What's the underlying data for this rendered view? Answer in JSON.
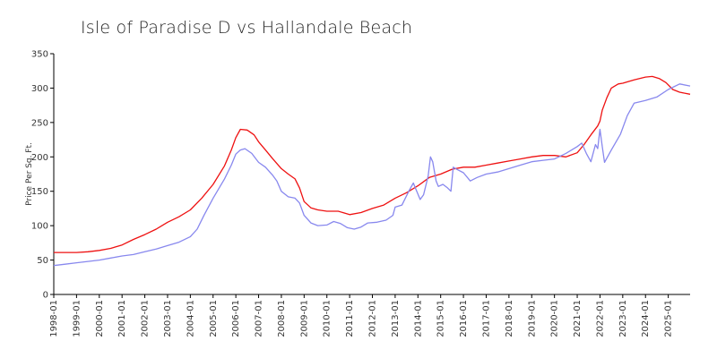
{
  "chart_data": {
    "type": "line",
    "title": "Isle of Paradise D vs Hallandale Beach",
    "xlabel": "",
    "ylabel": "Price Per Sq. Ft.",
    "ylim": [
      0,
      350
    ],
    "yticks": [
      0,
      50,
      100,
      150,
      200,
      250,
      300,
      350
    ],
    "xlim": [
      1998.0,
      2025.96
    ],
    "xticks": [
      "1998-01",
      "1999-01",
      "2000-01",
      "2001-01",
      "2002-01",
      "2003-01",
      "2004-01",
      "2005-01",
      "2006-01",
      "2007-01",
      "2008-01",
      "2009-01",
      "2010-01",
      "2011-01",
      "2012-01",
      "2013-01",
      "2014-01",
      "2015-01",
      "2016-01",
      "2017-01",
      "2018-01",
      "2019-01",
      "2020-01",
      "2021-01",
      "2022-01",
      "2023-01",
      "2024-01",
      "2025-01"
    ],
    "grid": false,
    "legend": "none",
    "series": [
      {
        "color": "#ee1111",
        "points": [
          [
            1998.0,
            61
          ],
          [
            1999.0,
            61
          ],
          [
            1999.5,
            62
          ],
          [
            2000.0,
            64
          ],
          [
            2000.5,
            67
          ],
          [
            2001.0,
            72
          ],
          [
            2001.5,
            80
          ],
          [
            2002.0,
            87
          ],
          [
            2002.5,
            95
          ],
          [
            2003.0,
            105
          ],
          [
            2003.5,
            113
          ],
          [
            2004.0,
            123
          ],
          [
            2004.5,
            140
          ],
          [
            2005.0,
            160
          ],
          [
            2005.5,
            187
          ],
          [
            2005.8,
            210
          ],
          [
            2006.0,
            228
          ],
          [
            2006.2,
            240
          ],
          [
            2006.5,
            239
          ],
          [
            2006.8,
            232
          ],
          [
            2007.0,
            222
          ],
          [
            2007.3,
            210
          ],
          [
            2007.6,
            198
          ],
          [
            2008.0,
            183
          ],
          [
            2008.3,
            175
          ],
          [
            2008.6,
            168
          ],
          [
            2008.8,
            155
          ],
          [
            2009.0,
            135
          ],
          [
            2009.3,
            126
          ],
          [
            2009.6,
            123
          ],
          [
            2010.0,
            121
          ],
          [
            2010.5,
            121
          ],
          [
            2011.0,
            116
          ],
          [
            2011.5,
            119
          ],
          [
            2012.0,
            125
          ],
          [
            2012.5,
            130
          ],
          [
            2013.0,
            140
          ],
          [
            2013.5,
            148
          ],
          [
            2014.0,
            158
          ],
          [
            2014.5,
            170
          ],
          [
            2015.0,
            175
          ],
          [
            2015.5,
            182
          ],
          [
            2016.0,
            185
          ],
          [
            2016.5,
            185
          ],
          [
            2017.0,
            188
          ],
          [
            2017.5,
            191
          ],
          [
            2018.0,
            194
          ],
          [
            2018.5,
            197
          ],
          [
            2019.0,
            200
          ],
          [
            2019.5,
            202
          ],
          [
            2020.0,
            202
          ],
          [
            2020.5,
            200
          ],
          [
            2021.0,
            206
          ],
          [
            2021.3,
            218
          ],
          [
            2021.6,
            232
          ],
          [
            2021.9,
            245
          ],
          [
            2022.0,
            252
          ],
          [
            2022.1,
            268
          ],
          [
            2022.3,
            286
          ],
          [
            2022.5,
            300
          ],
          [
            2022.8,
            306
          ],
          [
            2023.0,
            307
          ],
          [
            2023.5,
            312
          ],
          [
            2024.0,
            316
          ],
          [
            2024.3,
            317
          ],
          [
            2024.6,
            314
          ],
          [
            2024.9,
            308
          ],
          [
            2025.2,
            298
          ],
          [
            2025.5,
            294
          ],
          [
            2025.96,
            291
          ]
        ]
      },
      {
        "color": "#8888ee",
        "points": [
          [
            1998.0,
            42
          ],
          [
            1998.5,
            44
          ],
          [
            1999.0,
            46
          ],
          [
            1999.5,
            48
          ],
          [
            2000.0,
            50
          ],
          [
            2000.5,
            53
          ],
          [
            2001.0,
            56
          ],
          [
            2001.5,
            58
          ],
          [
            2002.0,
            62
          ],
          [
            2002.5,
            66
          ],
          [
            2003.0,
            71
          ],
          [
            2003.5,
            76
          ],
          [
            2004.0,
            84
          ],
          [
            2004.3,
            95
          ],
          [
            2004.6,
            115
          ],
          [
            2005.0,
            140
          ],
          [
            2005.5,
            168
          ],
          [
            2005.8,
            188
          ],
          [
            2006.0,
            204
          ],
          [
            2006.2,
            210
          ],
          [
            2006.4,
            212
          ],
          [
            2006.7,
            205
          ],
          [
            2007.0,
            192
          ],
          [
            2007.3,
            185
          ],
          [
            2007.6,
            174
          ],
          [
            2007.8,
            165
          ],
          [
            2008.0,
            150
          ],
          [
            2008.3,
            142
          ],
          [
            2008.6,
            140
          ],
          [
            2008.8,
            133
          ],
          [
            2009.0,
            115
          ],
          [
            2009.3,
            104
          ],
          [
            2009.6,
            100
          ],
          [
            2010.0,
            101
          ],
          [
            2010.3,
            106
          ],
          [
            2010.6,
            103
          ],
          [
            2010.9,
            97
          ],
          [
            2011.2,
            95
          ],
          [
            2011.5,
            98
          ],
          [
            2011.8,
            104
          ],
          [
            2012.2,
            105
          ],
          [
            2012.6,
            108
          ],
          [
            2012.9,
            115
          ],
          [
            2013.0,
            127
          ],
          [
            2013.3,
            130
          ],
          [
            2013.6,
            150
          ],
          [
            2013.8,
            162
          ],
          [
            2013.95,
            150
          ],
          [
            2014.1,
            138
          ],
          [
            2014.25,
            145
          ],
          [
            2014.45,
            172
          ],
          [
            2014.55,
            200
          ],
          [
            2014.65,
            193
          ],
          [
            2014.8,
            165
          ],
          [
            2014.9,
            157
          ],
          [
            2015.1,
            160
          ],
          [
            2015.3,
            155
          ],
          [
            2015.45,
            150
          ],
          [
            2015.55,
            185
          ],
          [
            2015.7,
            182
          ],
          [
            2016.0,
            177
          ],
          [
            2016.3,
            165
          ],
          [
            2016.6,
            170
          ],
          [
            2017.0,
            175
          ],
          [
            2017.5,
            178
          ],
          [
            2018.0,
            183
          ],
          [
            2018.5,
            188
          ],
          [
            2019.0,
            193
          ],
          [
            2019.5,
            195
          ],
          [
            2020.0,
            197
          ],
          [
            2020.5,
            205
          ],
          [
            2021.0,
            215
          ],
          [
            2021.2,
            220
          ],
          [
            2021.4,
            205
          ],
          [
            2021.6,
            193
          ],
          [
            2021.8,
            218
          ],
          [
            2021.9,
            212
          ],
          [
            2022.0,
            240
          ],
          [
            2022.1,
            215
          ],
          [
            2022.2,
            192
          ],
          [
            2022.5,
            210
          ],
          [
            2022.9,
            233
          ],
          [
            2023.2,
            260
          ],
          [
            2023.5,
            278
          ],
          [
            2024.0,
            282
          ],
          [
            2024.5,
            287
          ],
          [
            2025.0,
            298
          ],
          [
            2025.5,
            306
          ],
          [
            2025.96,
            303
          ]
        ]
      }
    ]
  }
}
